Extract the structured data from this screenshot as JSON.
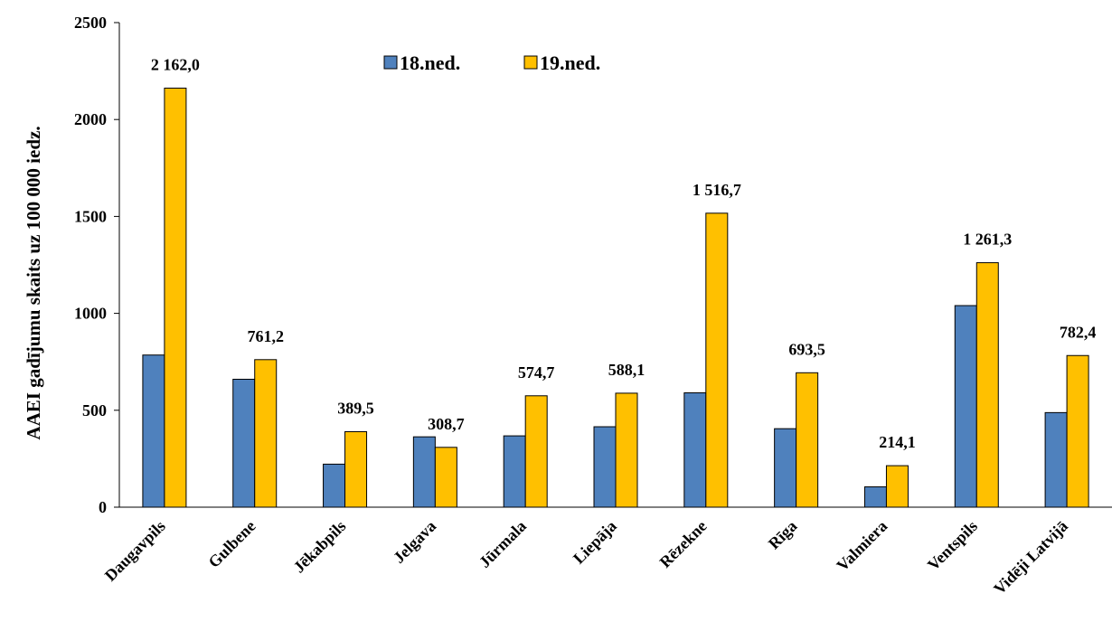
{
  "chart_data": {
    "type": "bar",
    "ylabel": "AAEI gadījumu skaits uz 100 000 iedz.",
    "ylim": [
      0,
      2500
    ],
    "yticks": [
      "0",
      "500",
      "1000",
      "1500",
      "2000",
      "2500"
    ],
    "grid": false,
    "legend_position": "top-center",
    "categories": [
      "Daugavpils",
      "Gulbene",
      "Jēkabpils",
      "Jelgava",
      "Jūrmala",
      "Liepāja",
      "Rēzekne",
      "Rīga",
      "Valmiera",
      "Ventspils",
      "Vidēji Latvijā"
    ],
    "series": [
      {
        "name": "18.ned.",
        "color": "#4F81BD",
        "values": [
          785,
          660,
          222,
          363,
          368,
          415,
          590,
          405,
          105,
          1040,
          488
        ]
      },
      {
        "name": "19.ned.",
        "color": "#FFC000",
        "values": [
          2162.0,
          761.2,
          389.5,
          308.7,
          574.7,
          588.1,
          1516.7,
          693.5,
          214.1,
          1261.3,
          782.4
        ],
        "labels": [
          "2 162,0",
          "761,2",
          "389,5",
          "308,7",
          "574,7",
          "588,1",
          "1 516,7",
          "693,5",
          "214,1",
          "1 261,3",
          "782,4"
        ]
      }
    ]
  }
}
